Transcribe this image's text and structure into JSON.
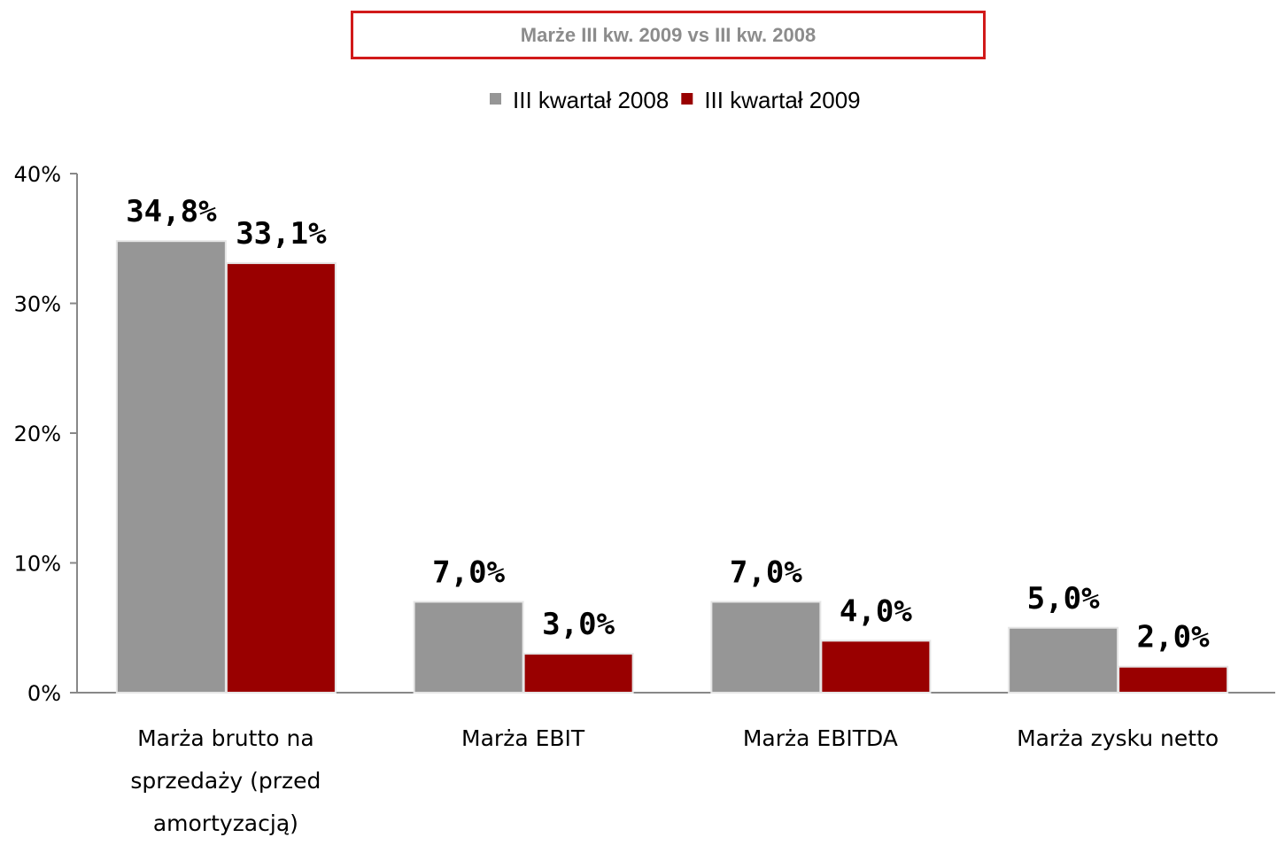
{
  "chart_data": {
    "type": "bar",
    "title": "Marże III kw. 2009 vs III kw. 2008",
    "categories": [
      "Marża brutto na sprzedaży (przed amortyzacją)",
      "Marża EBIT",
      "Marża EBITDA",
      "Marża zysku netto"
    ],
    "series": [
      {
        "name": "III kwartał 2008",
        "color": "#969696",
        "values": [
          34.8,
          7.0,
          7.0,
          5.0
        ],
        "value_labels": [
          "34,8%",
          "7,0%",
          "7,0%",
          "5,0%"
        ]
      },
      {
        "name": "III kwartał 2009",
        "color": "#990000",
        "values": [
          33.1,
          3.0,
          4.0,
          2.0
        ],
        "value_labels": [
          "33,1%",
          "3,0%",
          "4,0%",
          "2,0%"
        ]
      }
    ],
    "ylim": [
      0,
      40
    ],
    "yticks": [
      {
        "value": 0,
        "label": "0%"
      },
      {
        "value": 10,
        "label": "10%"
      },
      {
        "value": 20,
        "label": "20%"
      },
      {
        "value": 30,
        "label": "30%"
      },
      {
        "value": 40,
        "label": "40%"
      }
    ],
    "legend": "top",
    "grid": false
  }
}
